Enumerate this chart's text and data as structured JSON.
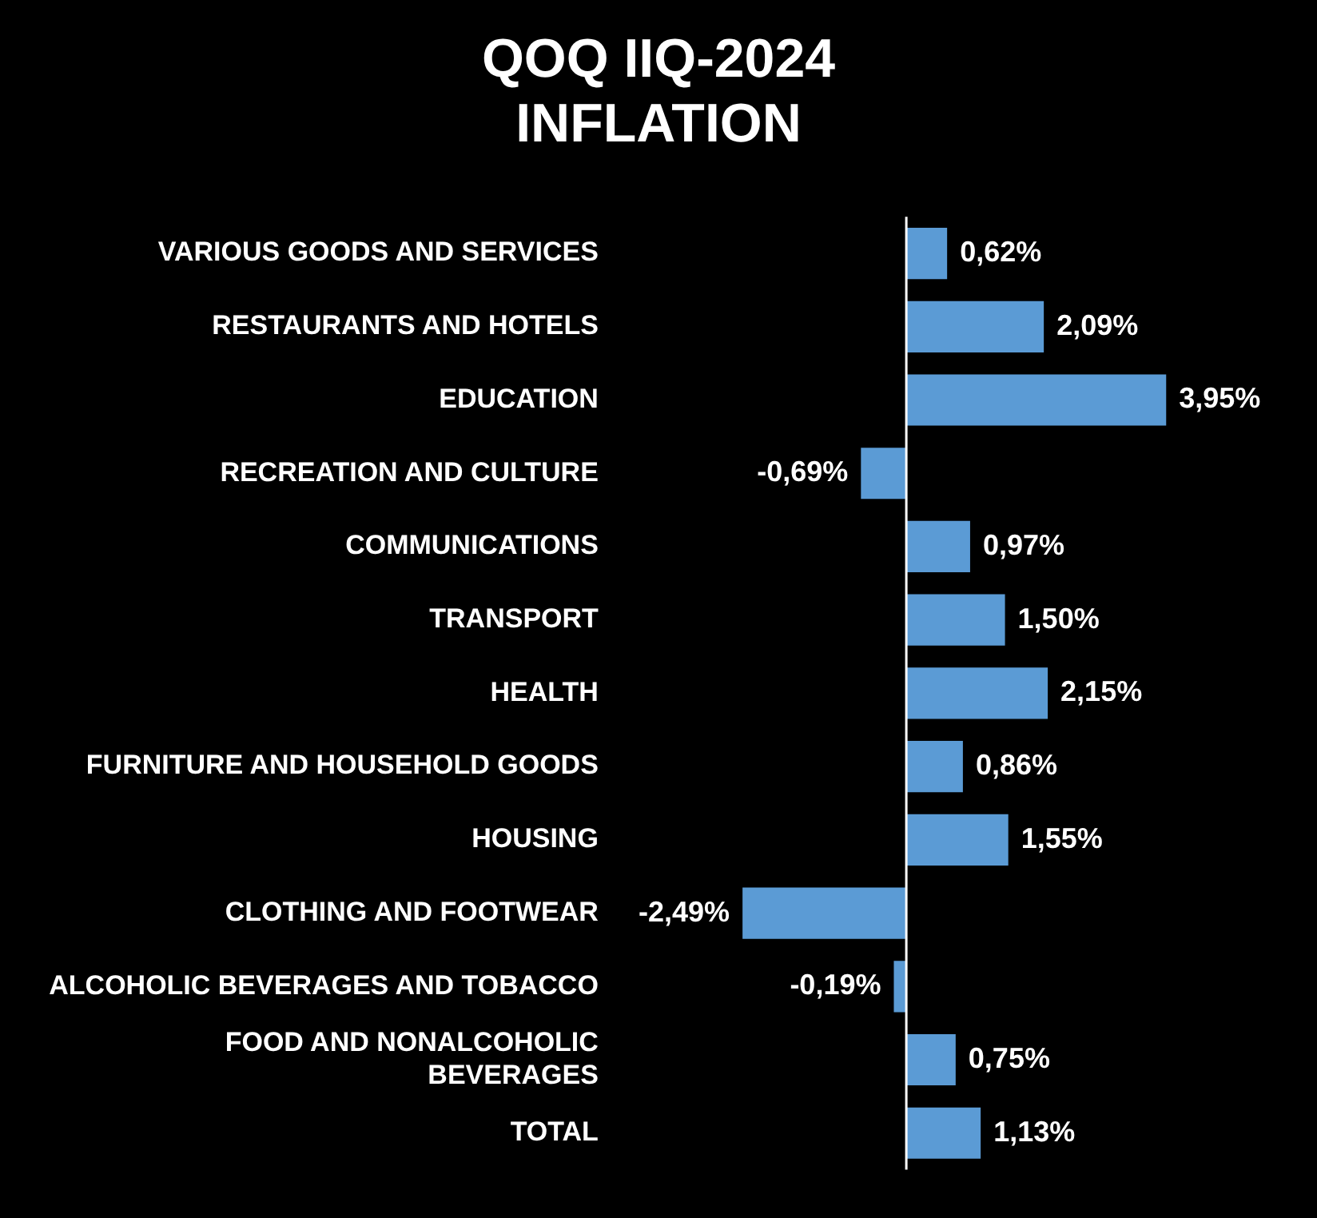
{
  "chart_data": {
    "type": "bar",
    "orientation": "horizontal",
    "title": "QOQ IIQ-2024\nINFLATION",
    "categories": [
      "VARIOUS GOODS AND SERVICES",
      "RESTAURANTS AND HOTELS",
      "EDUCATION",
      "RECREATION AND CULTURE",
      "COMMUNICATIONS",
      "TRANSPORT",
      "HEALTH",
      "FURNITURE AND HOUSEHOLD GOODS",
      "HOUSING",
      "CLOTHING AND FOOTWEAR",
      "ALCOHOLIC BEVERAGES AND TOBACCO",
      "FOOD AND NONALCOHOLIC\nBEVERAGES",
      "TOTAL"
    ],
    "values": [
      0.62,
      2.09,
      3.95,
      -0.69,
      0.97,
      1.5,
      2.15,
      0.86,
      1.55,
      -2.49,
      -0.19,
      0.75,
      1.13
    ],
    "value_labels": [
      "0,62%",
      "2,09%",
      "3,95%",
      "-0,69%",
      "0,97%",
      "1,50%",
      "2,15%",
      "0,86%",
      "1,55%",
      "-2,49%",
      "-0,19%",
      "0,75%",
      "1,13%"
    ],
    "color": "#5b9bd5",
    "tick_labels": "y",
    "legend": false
  }
}
